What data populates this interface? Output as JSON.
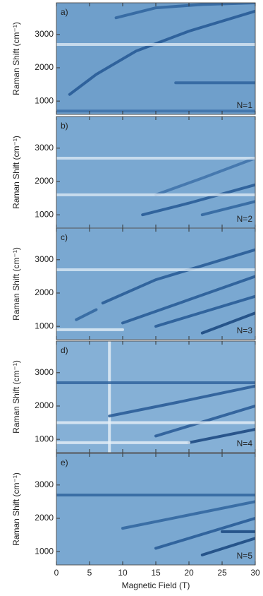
{
  "chart_data": [
    {
      "type": "heatmap",
      "panel_label": "a)",
      "annotation": "N=1",
      "ylabel": "Raman Shift (cm⁻¹)",
      "xlim": [
        0,
        30
      ],
      "xticks": [
        0,
        5,
        10,
        15,
        20,
        25,
        30
      ],
      "ylim": [
        600,
        3950
      ],
      "yticks": [
        1000,
        2000,
        3000
      ],
      "background": "#6f9fcb",
      "series": [
        {
          "color": "#1f5390",
          "x": [
            2,
            6,
            12,
            20,
            30
          ],
          "values": [
            1200,
            1800,
            2500,
            3100,
            3700
          ]
        },
        {
          "color": "#2a5f9a",
          "x": [
            9,
            15,
            22,
            30
          ],
          "values": [
            3500,
            3800,
            3900,
            3950
          ]
        },
        {
          "color": "#dce9f4",
          "x": [
            0,
            30
          ],
          "values": [
            2700,
            2700
          ]
        },
        {
          "color": "#2a5f9a",
          "x": [
            18,
            30
          ],
          "values": [
            1550,
            1550
          ]
        },
        {
          "color": "#3a6da6",
          "x": [
            0,
            30
          ],
          "values": [
            700,
            700
          ]
        }
      ]
    },
    {
      "type": "heatmap",
      "panel_label": "b)",
      "annotation": "N=2",
      "ylabel": "Raman Shift (cm⁻¹)",
      "xlim": [
        0,
        30
      ],
      "xticks": [
        0,
        5,
        10,
        15,
        20,
        25,
        30
      ],
      "ylim": [
        600,
        3950
      ],
      "yticks": [
        1000,
        2000,
        3000
      ],
      "background": "#7aa8d1",
      "series": [
        {
          "color": "#1f5390",
          "x": [
            13,
            20,
            30
          ],
          "values": [
            1000,
            1350,
            1900
          ]
        },
        {
          "color": "#2a5f9a",
          "x": [
            22,
            30
          ],
          "values": [
            1000,
            1400
          ]
        },
        {
          "color": "#3a6da6",
          "x": [
            15,
            22,
            30
          ],
          "values": [
            1600,
            2100,
            2700
          ]
        },
        {
          "color": "#dce9f4",
          "x": [
            0,
            30
          ],
          "values": [
            2700,
            2700
          ]
        },
        {
          "color": "#dce9f4",
          "x": [
            0,
            30
          ],
          "values": [
            1600,
            1600
          ]
        }
      ]
    },
    {
      "type": "heatmap",
      "panel_label": "c)",
      "annotation": "N=3",
      "ylabel": "Raman Shift (cm⁻¹)",
      "xlim": [
        0,
        30
      ],
      "xticks": [
        0,
        5,
        10,
        15,
        20,
        25,
        30
      ],
      "ylim": [
        600,
        3950
      ],
      "yticks": [
        1000,
        2000,
        3000
      ],
      "background": "#7aa8d1",
      "series": [
        {
          "color": "#2a5f9a",
          "x": [
            3,
            6
          ],
          "values": [
            1200,
            1500
          ]
        },
        {
          "color": "#1f5390",
          "x": [
            7,
            15,
            30
          ],
          "values": [
            1700,
            2400,
            3300
          ]
        },
        {
          "color": "#1f5390",
          "x": [
            10,
            20,
            30
          ],
          "values": [
            1100,
            1800,
            2500
          ]
        },
        {
          "color": "#1f5390",
          "x": [
            15,
            30
          ],
          "values": [
            1000,
            1900
          ]
        },
        {
          "color": "#123f78",
          "x": [
            22,
            30
          ],
          "values": [
            800,
            1400
          ]
        },
        {
          "color": "#e6f0f8",
          "x": [
            0,
            10
          ],
          "values": [
            900,
            900
          ]
        },
        {
          "color": "#dce9f4",
          "x": [
            0,
            30
          ],
          "values": [
            2700,
            2700
          ]
        }
      ]
    },
    {
      "type": "heatmap",
      "panel_label": "d)",
      "annotation": "N=4",
      "ylabel": "Raman Shift (cm⁻¹)",
      "xlim": [
        0,
        30
      ],
      "xticks": [
        0,
        5,
        10,
        15,
        20,
        25,
        30
      ],
      "ylim": [
        600,
        3950
      ],
      "yticks": [
        1000,
        2000,
        3000
      ],
      "background": "#85b0d6",
      "series": [
        {
          "color": "#e6f0f8",
          "x": [
            8,
            8
          ],
          "values": [
            600,
            3950
          ]
        },
        {
          "color": "#1f5390",
          "x": [
            8,
            18,
            30
          ],
          "values": [
            1700,
            2100,
            2600
          ]
        },
        {
          "color": "#1f5390",
          "x": [
            15,
            30
          ],
          "values": [
            1100,
            2000
          ]
        },
        {
          "color": "#123f78",
          "x": [
            20,
            30
          ],
          "values": [
            900,
            1300
          ]
        },
        {
          "color": "#2a5f9a",
          "x": [
            0,
            30
          ],
          "values": [
            2700,
            2700
          ]
        },
        {
          "color": "#e6f0f8",
          "x": [
            0,
            30
          ],
          "values": [
            1500,
            1500
          ]
        },
        {
          "color": "#e6f0f8",
          "x": [
            0,
            20
          ],
          "values": [
            900,
            900
          ]
        }
      ]
    },
    {
      "type": "heatmap",
      "panel_label": "e)",
      "annotation": "N=5",
      "ylabel": "Raman Shift (cm⁻¹)",
      "xlabel": "Magnetic Field (T)",
      "xlim": [
        0,
        30
      ],
      "xticks": [
        0,
        5,
        10,
        15,
        20,
        25,
        30
      ],
      "ylim": [
        600,
        3950
      ],
      "yticks": [
        1000,
        2000,
        3000
      ],
      "background": "#7aa8d1",
      "series": [
        {
          "color": "#2a5f9a",
          "x": [
            10,
            20,
            30
          ],
          "values": [
            1700,
            2100,
            2500
          ]
        },
        {
          "color": "#1f5390",
          "x": [
            15,
            30
          ],
          "values": [
            1100,
            2000
          ]
        },
        {
          "color": "#123f78",
          "x": [
            22,
            30
          ],
          "values": [
            900,
            1400
          ]
        },
        {
          "color": "#2a5f9a",
          "x": [
            0,
            30
          ],
          "values": [
            2700,
            2700
          ]
        },
        {
          "color": "#123f78",
          "x": [
            25,
            30
          ],
          "values": [
            1600,
            1600
          ]
        }
      ]
    }
  ]
}
